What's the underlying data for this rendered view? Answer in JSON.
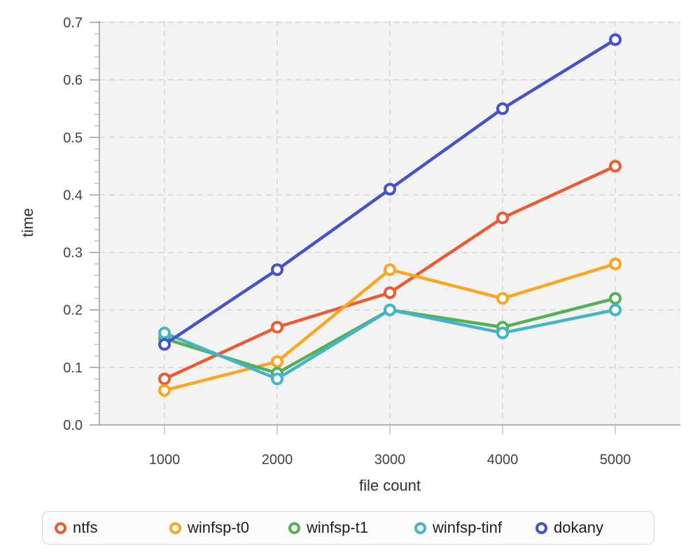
{
  "chart_data": {
    "type": "line",
    "title": "",
    "xlabel": "file count",
    "ylabel": "time",
    "ylim": [
      0,
      0.7
    ],
    "x": [
      1000,
      2000,
      3000,
      4000,
      5000
    ],
    "x_ticks": [
      "1000",
      "2000",
      "3000",
      "4000",
      "5000"
    ],
    "y_ticks": [
      "0.0",
      "0.1",
      "0.2",
      "0.3",
      "0.4",
      "0.5",
      "0.6",
      "0.7"
    ],
    "grid": "dashed",
    "legend_position": "bottom",
    "marker_style": "open-circle",
    "series": [
      {
        "name": "ntfs",
        "color": "#ea5b34",
        "values": [
          0.08,
          0.17,
          0.23,
          0.36,
          0.45
        ]
      },
      {
        "name": "winfsp-t0",
        "color": "#fca520",
        "values": [
          0.06,
          0.11,
          0.27,
          0.22,
          0.28
        ]
      },
      {
        "name": "winfsp-t1",
        "color": "#55b055",
        "values": [
          0.15,
          0.09,
          0.2,
          0.17,
          0.22
        ]
      },
      {
        "name": "winfsp-tinf",
        "color": "#46b4c8",
        "values": [
          0.16,
          0.08,
          0.2,
          0.16,
          0.2
        ]
      },
      {
        "name": "dokany",
        "color": "#4553c9",
        "values": [
          0.14,
          0.27,
          0.41,
          0.55,
          0.67
        ]
      }
    ],
    "plot_colors": {
      "plot_background": "#f3f3f3",
      "gridline": "#d8d8d8",
      "axis_line": "#9c9c9c",
      "minor_tick": "#b0b0b0",
      "x_tick": "#c2c2c2"
    }
  }
}
